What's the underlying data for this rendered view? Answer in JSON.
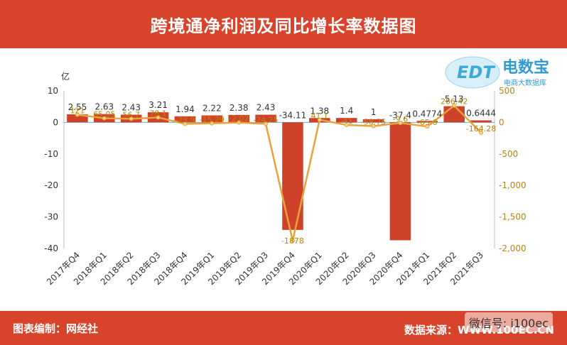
{
  "title": "跨境通净利润及同比增长率数据图",
  "footer": {
    "left": "图表编制：网经社",
    "right": "数据来源：WWW.100EC.CN",
    "wechat": "微信号: i100ec"
  },
  "logo": {
    "text": "电数宝",
    "subtext": "电商大数据库",
    "mark": "EDT"
  },
  "colors": {
    "bar": "#d0412a",
    "line": "#e8a33a",
    "label_line": "#b8860b",
    "header": "#d8432b"
  },
  "chart_data": {
    "type": "bar",
    "categories": [
      "2017年Q4",
      "2018年Q1",
      "2018年Q2",
      "2018年Q3",
      "2018年Q4",
      "2019年Q1",
      "2019年Q2",
      "2019年Q3",
      "2019年Q4",
      "2020年Q1",
      "2020年Q2",
      "2020年Q3",
      "2020年Q4",
      "2021年Q1",
      "2021年Q2",
      "2021年Q3"
    ],
    "ylabel": "亿",
    "ylim": [
      -40,
      10
    ],
    "yticks": [
      10,
      0,
      -10,
      -20,
      -30,
      -40
    ],
    "y2lim": [
      -2000,
      500
    ],
    "y2ticks": [
      500,
      0,
      -500,
      -1000,
      -1500,
      -2000
    ],
    "y2ticklabels": [
      "500",
      "0",
      "-500",
      "-1,000",
      "-1,500",
      "-2,000"
    ],
    "series": [
      {
        "type": "bar",
        "axis": "left",
        "values": [
          2.55,
          2.63,
          2.43,
          3.21,
          1.94,
          2.22,
          2.38,
          2.43,
          -34.11,
          1.38,
          1.4,
          1,
          -37.4,
          0.4774,
          5.13,
          0.6444
        ],
        "labels": [
          "2.55",
          "2.63",
          "2.43",
          "3.21",
          "1.94",
          "2.22",
          "2.38",
          "2.43",
          "-34.11",
          "1.38",
          "1.4",
          "1",
          "-37.4",
          "0.4774",
          "5.13",
          "0.6444"
        ]
      },
      {
        "type": "line",
        "axis": "right",
        "values": [
          121,
          65.05,
          56.7,
          78.1,
          -23.9,
          -15.29,
          -2.02,
          -24.25,
          -1878,
          41.1,
          -41,
          -58.75,
          -9.6,
          -65.6,
          266.42,
          -164.28
        ],
        "labels": [
          "121",
          "65.05",
          "56.7",
          "78.1",
          "-23.9",
          "-15.29",
          "-2.02",
          "-24.25",
          "-1878",
          "41.1",
          "-41",
          "-58.75",
          "-9.6",
          "-65.6",
          "266.42",
          "-164.28"
        ]
      }
    ],
    "legend": "none",
    "grid": false
  }
}
